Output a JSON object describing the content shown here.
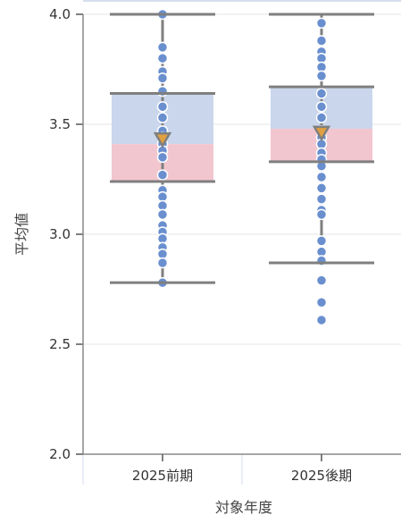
{
  "chart_data": {
    "type": "box",
    "xlabel": "対象年度",
    "ylabel": "平均値",
    "ylim": [
      2.0,
      4.0
    ],
    "yticks": [
      "2.0",
      "2.5",
      "3.0",
      "3.5",
      "4.0"
    ],
    "categories": [
      "2025前期",
      "2025後期"
    ],
    "colors": {
      "upper_box": "#c9d6ec",
      "lower_box": "#f2c6cf",
      "whisker": "#7f7f7f",
      "point": "#6a8fcf",
      "mean_marker": "#e0a040",
      "grid": "#e6e6e6"
    },
    "boxes": [
      {
        "category": "2025前期",
        "whisker_low": 2.78,
        "q1": 3.24,
        "median": 3.41,
        "q3": 3.64,
        "whisker_high": 4.0,
        "mean": 3.43,
        "points": [
          4.0,
          3.85,
          3.8,
          3.74,
          3.71,
          3.65,
          3.58,
          3.53,
          3.47,
          3.44,
          3.41,
          3.38,
          3.35,
          3.27,
          3.2,
          3.17,
          3.13,
          3.09,
          3.04,
          3.01,
          2.98,
          2.94,
          2.91,
          2.87,
          2.78
        ]
      },
      {
        "category": "2025後期",
        "whisker_low": 2.87,
        "q1": 3.33,
        "median": 3.48,
        "q3": 3.67,
        "whisker_high": 4.0,
        "mean": 3.46,
        "points": [
          3.96,
          3.88,
          3.83,
          3.8,
          3.76,
          3.72,
          3.64,
          3.58,
          3.53,
          3.47,
          3.44,
          3.41,
          3.37,
          3.34,
          3.31,
          3.26,
          3.21,
          3.16,
          3.11,
          3.09,
          2.97,
          2.92,
          2.88,
          2.79,
          2.69,
          2.61
        ]
      }
    ]
  }
}
